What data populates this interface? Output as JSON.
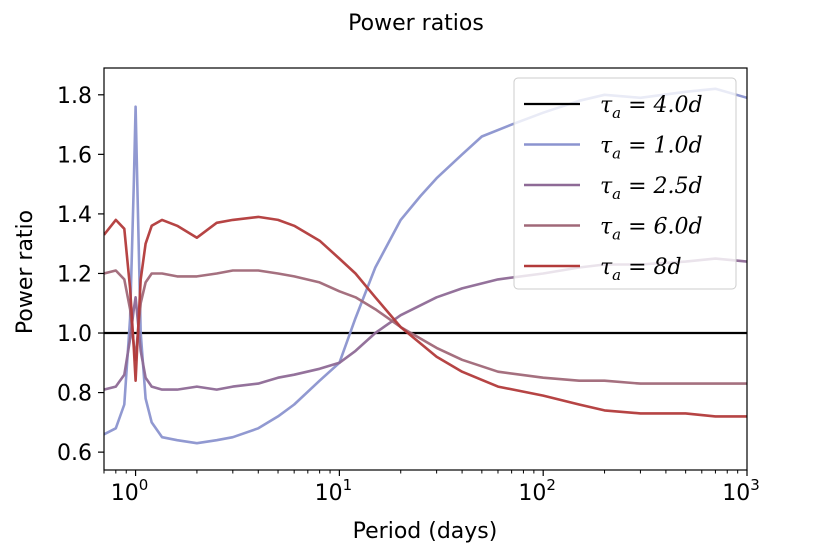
{
  "chart_data": {
    "type": "line",
    "title": "Power ratios",
    "xlabel": "Period (days)",
    "ylabel": "Power ratio",
    "xscale": "log",
    "xlim": [
      0.7,
      1000
    ],
    "ylim": [
      0.54,
      1.89
    ],
    "x_ticks": [
      {
        "value": 1,
        "base": "10",
        "exp": "0"
      },
      {
        "value": 10,
        "base": "10",
        "exp": "1"
      },
      {
        "value": 100,
        "base": "10",
        "exp": "2"
      },
      {
        "value": 1000,
        "base": "10",
        "exp": "3"
      }
    ],
    "y_ticks": [
      {
        "value": 0.6,
        "label": "0.6"
      },
      {
        "value": 0.8,
        "label": "0.8"
      },
      {
        "value": 1.0,
        "label": "1.0"
      },
      {
        "value": 1.2,
        "label": "1.2"
      },
      {
        "value": 1.4,
        "label": "1.4"
      },
      {
        "value": 1.6,
        "label": "1.6"
      },
      {
        "value": 1.8,
        "label": "1.8"
      }
    ],
    "legend_position": "top-right",
    "series": [
      {
        "name": "τa = 4.0d",
        "label_main": "τ",
        "label_sub": "a",
        "label_rest": " = 4.0d",
        "color": "#000000",
        "x": [
          0.7,
          1000
        ],
        "y": [
          1.0,
          1.0
        ]
      },
      {
        "name": "τa = 1.0d",
        "label_main": "τ",
        "label_sub": "a",
        "label_rest": " = 1.0d",
        "color": "#8b93cf",
        "x": [
          0.7,
          0.8,
          0.88,
          0.94,
          0.98,
          1.0,
          1.02,
          1.06,
          1.12,
          1.2,
          1.35,
          1.6,
          2.0,
          2.5,
          3.0,
          4.0,
          5.0,
          6.0,
          8.0,
          10.0,
          12.0,
          15.0,
          20.0,
          25.0,
          30.0,
          40.0,
          50.0,
          70.0,
          100.0,
          150.0,
          200.0,
          300.0,
          500.0,
          700.0,
          1000.0
        ],
        "y": [
          0.66,
          0.68,
          0.76,
          1.05,
          1.5,
          1.76,
          1.5,
          1.0,
          0.78,
          0.7,
          0.65,
          0.64,
          0.63,
          0.64,
          0.65,
          0.68,
          0.72,
          0.76,
          0.84,
          0.9,
          1.05,
          1.22,
          1.38,
          1.46,
          1.52,
          1.6,
          1.66,
          1.7,
          1.74,
          1.78,
          1.8,
          1.79,
          1.81,
          1.82,
          1.79
        ]
      },
      {
        "name": "τa = 2.5d",
        "label_main": "τ",
        "label_sub": "a",
        "label_rest": " = 2.5d",
        "color": "#8e6a96",
        "x": [
          0.7,
          0.8,
          0.88,
          0.94,
          0.98,
          1.0,
          1.02,
          1.06,
          1.12,
          1.2,
          1.35,
          1.6,
          2.0,
          2.5,
          3.0,
          4.0,
          5.0,
          6.0,
          8.0,
          10.0,
          12.0,
          15.0,
          20.0,
          30.0,
          40.0,
          60.0,
          100.0,
          150.0,
          200.0,
          300.0,
          500.0,
          700.0,
          1000.0
        ],
        "y": [
          0.81,
          0.82,
          0.86,
          0.98,
          1.08,
          1.12,
          1.06,
          0.94,
          0.85,
          0.82,
          0.81,
          0.81,
          0.82,
          0.81,
          0.82,
          0.83,
          0.85,
          0.86,
          0.88,
          0.9,
          0.94,
          1.0,
          1.06,
          1.12,
          1.15,
          1.18,
          1.2,
          1.22,
          1.23,
          1.23,
          1.24,
          1.25,
          1.24
        ]
      },
      {
        "name": "τa = 6.0d",
        "label_main": "τ",
        "label_sub": "a",
        "label_rest": " = 6.0d",
        "color": "#a06878",
        "x": [
          0.7,
          0.8,
          0.88,
          0.94,
          0.98,
          1.0,
          1.02,
          1.06,
          1.12,
          1.2,
          1.35,
          1.6,
          2.0,
          2.5,
          3.0,
          4.0,
          5.0,
          6.0,
          8.0,
          10.0,
          12.0,
          15.0,
          20.0,
          30.0,
          40.0,
          60.0,
          100.0,
          150.0,
          200.0,
          300.0,
          500.0,
          700.0,
          1000.0
        ],
        "y": [
          1.2,
          1.21,
          1.18,
          1.08,
          0.96,
          0.91,
          0.98,
          1.1,
          1.17,
          1.2,
          1.2,
          1.19,
          1.19,
          1.2,
          1.21,
          1.21,
          1.2,
          1.19,
          1.17,
          1.14,
          1.12,
          1.08,
          1.02,
          0.95,
          0.91,
          0.87,
          0.85,
          0.84,
          0.84,
          0.83,
          0.83,
          0.83,
          0.83
        ]
      },
      {
        "name": "τa = 8d",
        "label_main": "τ",
        "label_sub": "a",
        "label_rest": " = 8d",
        "color": "#b23a3a",
        "x": [
          0.7,
          0.8,
          0.88,
          0.94,
          0.98,
          1.0,
          1.02,
          1.06,
          1.12,
          1.2,
          1.35,
          1.6,
          2.0,
          2.5,
          3.0,
          4.0,
          5.0,
          6.0,
          8.0,
          10.0,
          12.0,
          15.0,
          20.0,
          30.0,
          40.0,
          60.0,
          100.0,
          150.0,
          200.0,
          300.0,
          500.0,
          700.0,
          1000.0
        ],
        "y": [
          1.33,
          1.38,
          1.35,
          1.15,
          0.95,
          0.84,
          0.96,
          1.18,
          1.3,
          1.36,
          1.38,
          1.36,
          1.32,
          1.37,
          1.38,
          1.39,
          1.38,
          1.36,
          1.31,
          1.25,
          1.2,
          1.12,
          1.02,
          0.92,
          0.87,
          0.82,
          0.79,
          0.76,
          0.74,
          0.73,
          0.73,
          0.72,
          0.72
        ]
      }
    ]
  }
}
